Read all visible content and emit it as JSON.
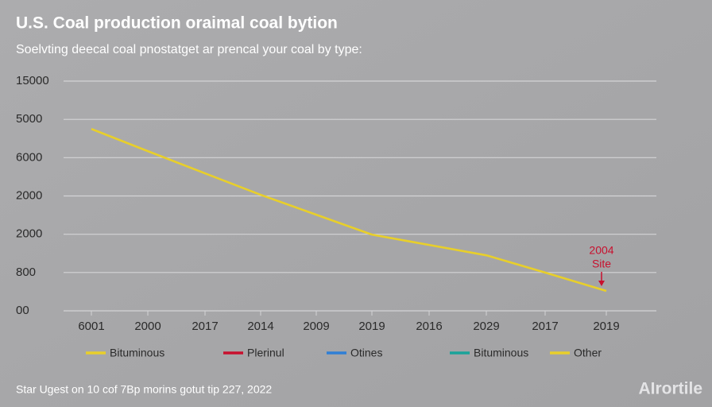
{
  "chart_data": {
    "type": "line",
    "title": "U.S. Coal production oraimal coal bytion",
    "subtitle": "Soelvting deecal coal pnostatget ar prencal your coal by type:",
    "categories": [
      "6001",
      "2000",
      "2017",
      "2014",
      "2009",
      "2019",
      "2016",
      "2029",
      "2017",
      "2019"
    ],
    "values": [
      4.75,
      4.17,
      3.59,
      3.03,
      2.51,
      1.99,
      1.72,
      1.45,
      1.0,
      0.52
    ],
    "color": "#e8cf2a",
    "ylim": [
      0,
      6
    ],
    "yticks": [
      {
        "value": 0,
        "label": "00"
      },
      {
        "value": 1,
        "label": "800"
      },
      {
        "value": 2,
        "label": "2000"
      },
      {
        "value": 3,
        "label": "2000"
      },
      {
        "value": 4,
        "label": "6000"
      },
      {
        "value": 5,
        "label": "5000"
      },
      {
        "value": 6,
        "label": "15000"
      }
    ],
    "grid": true,
    "annotation": {
      "lines": [
        "2004",
        "Site"
      ],
      "color": "#c8102e"
    },
    "legend": [
      {
        "name": "Bituminous",
        "color": "#e8cf2a"
      },
      {
        "name": "Plerinul",
        "color": "#c8102e"
      },
      {
        "name": "Otines",
        "color": "#2f7fd6"
      },
      {
        "name": "Bituminous",
        "color": "#1aa39a"
      },
      {
        "name": "Other",
        "color": "#e8cf2a"
      }
    ],
    "footer": "Star Ugest on 10 cof 7Bp morins gotut tip 227, 2022",
    "watermark": "AIrortile"
  }
}
